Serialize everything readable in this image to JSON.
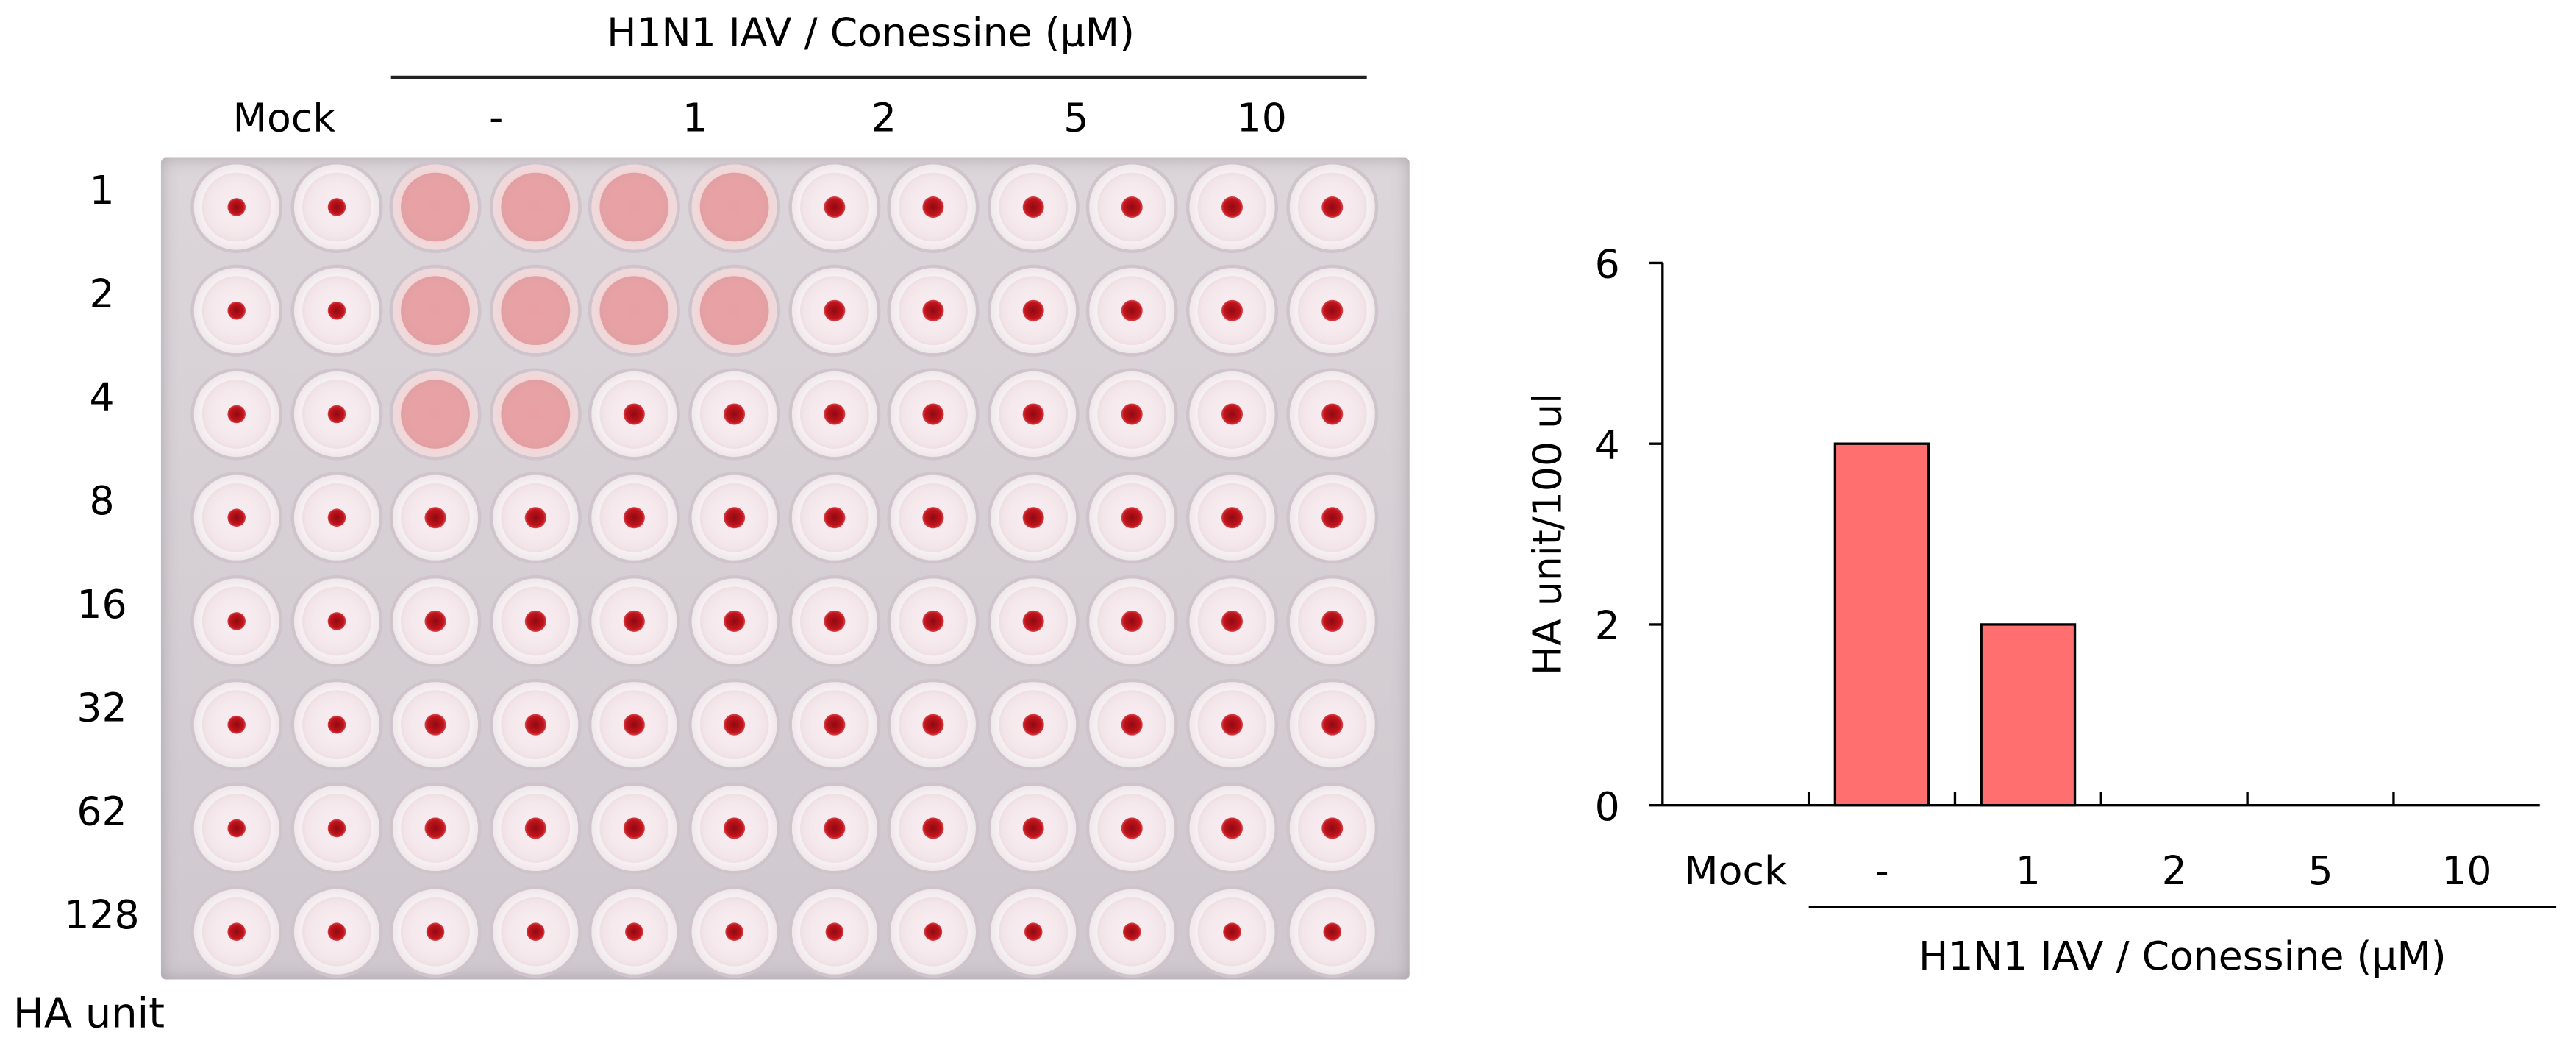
{
  "plate": {
    "header": "H1N1 IAV / Conessine (μM)",
    "column_groups": [
      "Mock",
      "-",
      "1",
      "2",
      "5",
      "10"
    ],
    "row_labels": [
      "1",
      "2",
      "4",
      "8",
      "16",
      "32",
      "62",
      "128"
    ],
    "corner_label": "HA unit",
    "agglutinated_wells_per_column": [
      0,
      0,
      3,
      3,
      2,
      2,
      0,
      0,
      0,
      0,
      0,
      0
    ],
    "colors": {
      "background": "#d8d2d7",
      "well": "#f4e6ea",
      "button": "#c4141c",
      "agglutinated": "#e9a0a4"
    }
  },
  "chart_data": {
    "type": "bar",
    "categories": [
      "Mock",
      "-",
      "1",
      "2",
      "5",
      "10"
    ],
    "values": [
      0,
      4,
      2,
      0,
      0,
      0
    ],
    "title": "",
    "xlabel": "H1N1 IAV / Conessine (μM)",
    "ylabel": "HA unit/100 ul",
    "ylim": [
      0,
      6
    ],
    "yticks": [
      "0",
      "2",
      "4",
      "6"
    ],
    "grid": false,
    "bar_color": "#ff6f6f"
  }
}
